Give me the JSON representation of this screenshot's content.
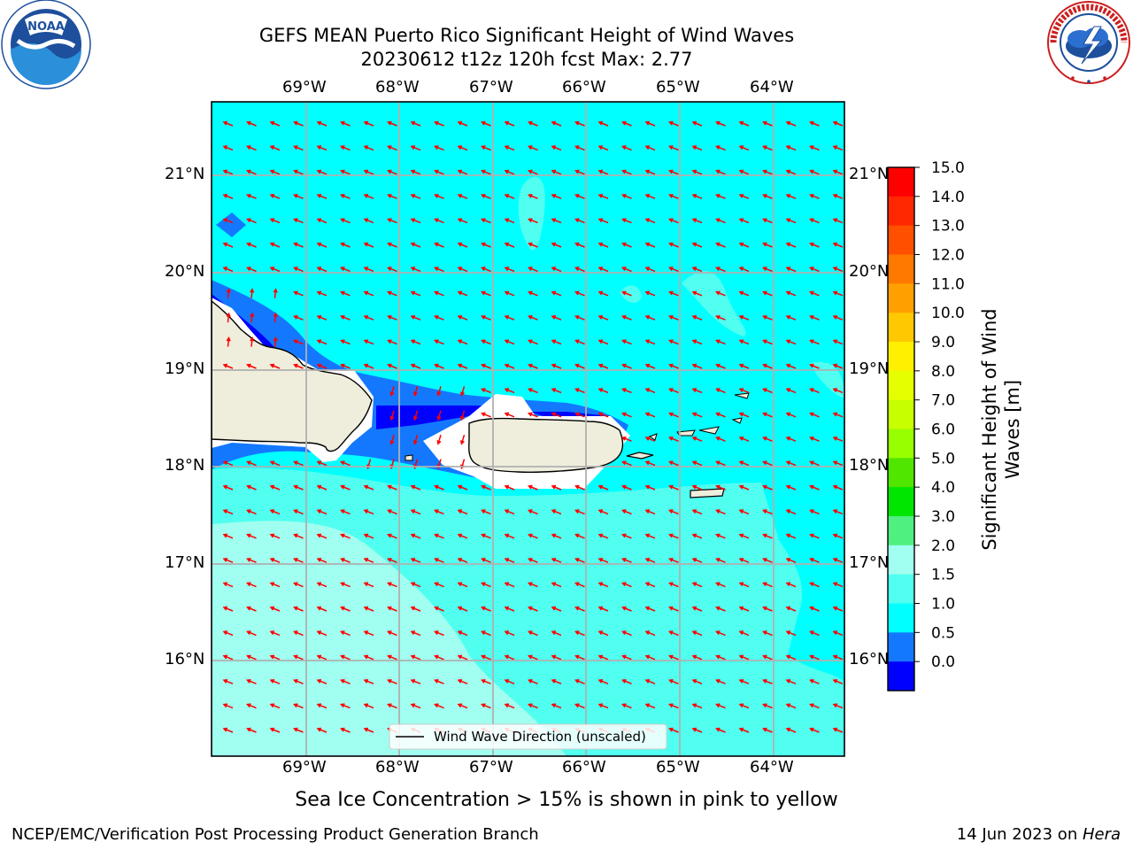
{
  "title": {
    "line1": "GEFS MEAN Puerto Rico Significant Height of Wind Waves",
    "line2": "20230612 t12z 120h fcst   Max: 2.77"
  },
  "logos": {
    "left_name": "NOAA",
    "left_ring": "NATIONAL OCEANIC AND ATMOSPHERIC ADMINISTRATION · U.S. DEPARTMENT OF COMMERCE",
    "right_ring": "NATIONAL WEATHER SERVICE"
  },
  "map": {
    "lon_labels": [
      "69°W",
      "68°W",
      "67°W",
      "66°W",
      "65°W",
      "64°W"
    ],
    "lat_labels": [
      "21°N",
      "20°N",
      "19°N",
      "18°N",
      "17°N",
      "16°N"
    ],
    "legend_label": "Wind Wave Direction (unscaled)",
    "arrow_color": "#ff0000",
    "land_color": "#efeedc",
    "extent": {
      "lon": [
        -70.0,
        -63.25
      ],
      "lat": [
        15.05,
        21.75
      ]
    }
  },
  "colorbar": {
    "label_line1": "Significant Height of Wind",
    "label_line2": "Waves [m]",
    "ticks": [
      "15.0",
      "14.0",
      "13.0",
      "12.0",
      "11.0",
      "10.0",
      "9.0",
      "8.0",
      "7.0",
      "6.0",
      "5.0",
      "4.0",
      "3.0",
      "2.0",
      "1.5",
      "1.0",
      "0.5",
      "0.0"
    ],
    "colors_top_to_bottom": [
      "#ff0000",
      "#ff2800",
      "#ff5000",
      "#ff7800",
      "#ffa000",
      "#ffc800",
      "#fff000",
      "#e6ff00",
      "#c8ff00",
      "#96ff00",
      "#50e600",
      "#00e600",
      "#50f080",
      "#a0fff0",
      "#50fff0",
      "#00ffff",
      "#1478ff",
      "#0000ff"
    ]
  },
  "note": "Sea Ice Concentration > 15% is shown in pink to yellow",
  "footer": {
    "left": "NCEP/EMC/Verification Post Processing Product Generation Branch",
    "date": "14 Jun 2023 on ",
    "machine": "Hera"
  }
}
